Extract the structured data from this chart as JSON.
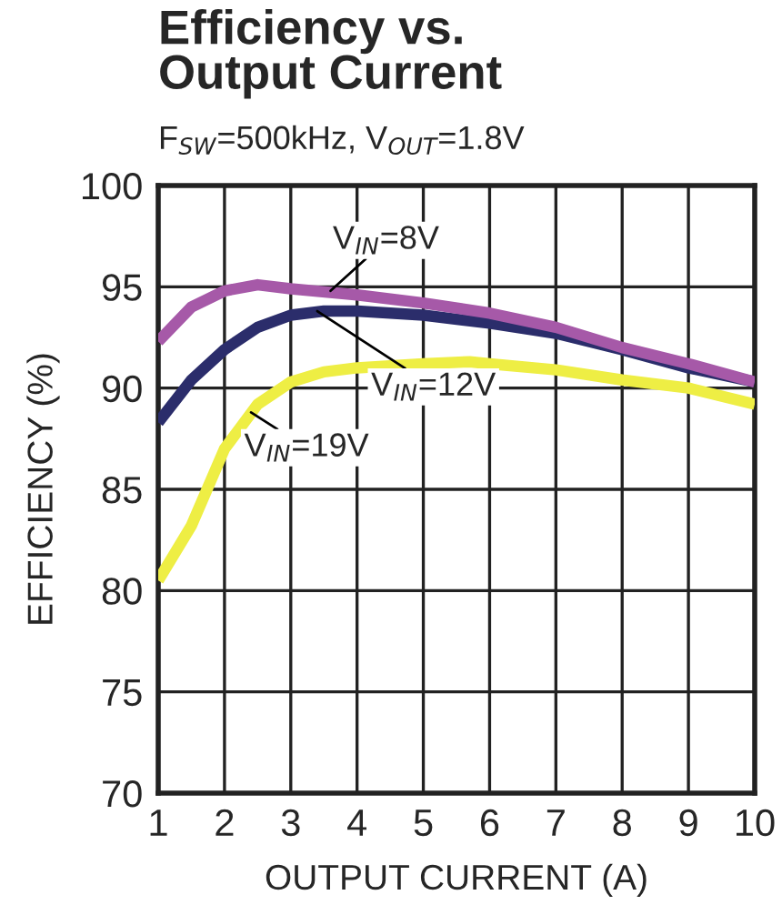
{
  "chart_data": {
    "type": "line",
    "title": "Efficiency vs.\nOutput Current",
    "subtitle": "F$_{SW}$=500kHz, V$_{OUT}$=1.8V",
    "xlabel": "OUTPUT CURRENT (A)",
    "ylabel": "EFFICIENCY (%)",
    "xlim": [
      1,
      10
    ],
    "xticks": [
      1,
      2,
      3,
      4,
      5,
      6,
      7,
      8,
      9,
      10
    ],
    "ylim": [
      70,
      100
    ],
    "yticks": [
      70,
      75,
      80,
      85,
      90,
      95,
      100
    ],
    "grid": true,
    "marker": "none",
    "line_style": "solid",
    "series": [
      {
        "color": "#a659a8",
        "x": [
          1,
          1.5,
          2,
          2.5,
          3,
          4,
          5,
          6,
          7,
          8,
          9,
          10
        ],
        "values": [
          92.3,
          94.0,
          94.8,
          95.1,
          94.9,
          94.6,
          94.2,
          93.7,
          93.0,
          92.0,
          91.2,
          90.3
        ]
      },
      {
        "color": "#2b2d6b",
        "x": [
          1,
          1.5,
          2,
          2.5,
          3,
          3.5,
          4,
          5,
          6,
          7,
          8,
          9,
          10
        ],
        "values": [
          88.3,
          90.4,
          91.9,
          93.0,
          93.6,
          93.8,
          93.8,
          93.6,
          93.2,
          92.7,
          91.9,
          91.0,
          90.3
        ]
      },
      {
        "color": "#eeee44",
        "x": [
          1,
          1.5,
          2,
          2.5,
          3,
          3.5,
          4,
          5,
          5.7,
          6,
          7,
          8,
          9,
          10
        ],
        "values": [
          80.5,
          83.2,
          87.0,
          89.2,
          90.3,
          90.8,
          91.0,
          91.2,
          91.3,
          91.2,
          90.9,
          90.4,
          90.0,
          89.2
        ]
      }
    ],
    "annotations": [
      {
        "text": "V$_{IN}$=8V",
        "x": 3.6,
        "y": 94.8
      },
      {
        "text": "V$_{IN}$=12V",
        "x": 3.4,
        "y": 93.8
      },
      {
        "text": "V$_{IN}$=19V",
        "x": 2.4,
        "y": 88.8
      }
    ]
  }
}
